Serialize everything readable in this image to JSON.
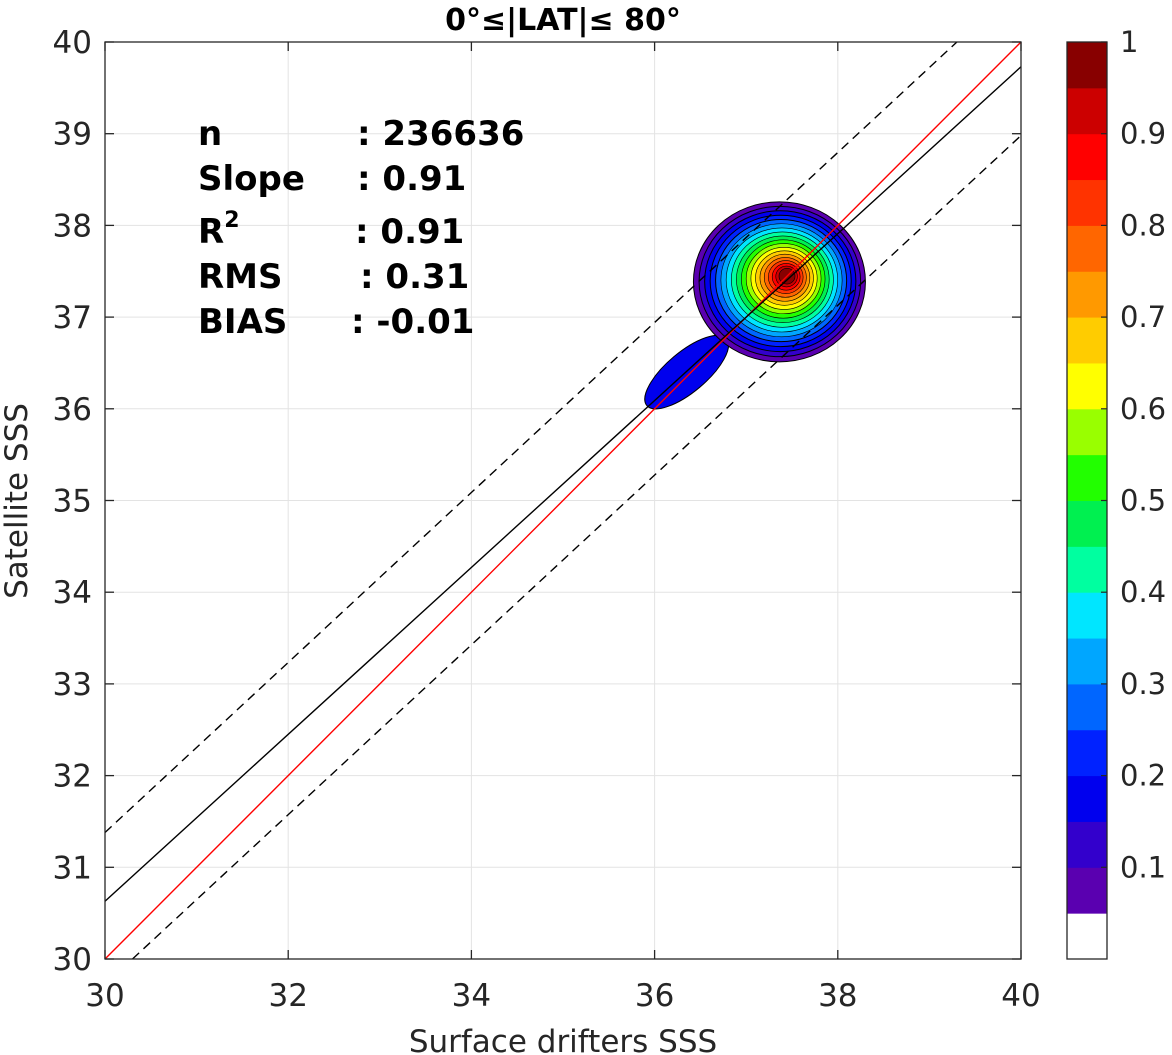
{
  "chart_data": {
    "type": "contour",
    "title": "0°≤|LAT|≤ 80°",
    "xlabel": "Surface drifters SSS",
    "ylabel": "Satellite SSS",
    "xlim": [
      30,
      40
    ],
    "ylim": [
      30,
      40
    ],
    "x_ticks": [
      "30",
      "32",
      "34",
      "36",
      "38",
      "40"
    ],
    "y_ticks": [
      "30",
      "31",
      "32",
      "33",
      "34",
      "35",
      "36",
      "37",
      "38",
      "39",
      "40"
    ],
    "grid": true,
    "stats": [
      {
        "label": "n",
        "value": ": 236636"
      },
      {
        "label": "Slope",
        "value": ": 0.91"
      },
      {
        "label": "R",
        "sup": "2",
        "value": ": 0.91"
      },
      {
        "label": "RMS",
        "value": ": 0.31"
      },
      {
        "label": "BIAS",
        "value": ": -0.01"
      }
    ],
    "lines": [
      {
        "name": "identity",
        "style": "solid",
        "color": "#ff0000",
        "x": [
          30,
          40
        ],
        "y": [
          30,
          40
        ]
      },
      {
        "name": "fit",
        "style": "solid",
        "color": "#000000",
        "x": [
          30,
          40
        ],
        "y": [
          30.63,
          39.73
        ]
      },
      {
        "name": "fit-plus",
        "style": "dashed",
        "color": "#000000",
        "x": [
          30,
          39.3
        ],
        "y": [
          31.38,
          40
        ]
      },
      {
        "name": "fit-minus",
        "style": "dashed",
        "color": "#000000",
        "x": [
          30.3,
          40
        ],
        "y": [
          30,
          38.98
        ]
      }
    ],
    "density_peaks": [
      {
        "x": 37.45,
        "y": 37.45,
        "peak": 1.0
      },
      {
        "x": 36.35,
        "y": 36.4,
        "peak": 0.1
      }
    ],
    "colorbar": {
      "range": [
        0,
        1
      ],
      "ticks": [
        "0.1",
        "0.2",
        "0.3",
        "0.4",
        "0.5",
        "0.6",
        "0.7",
        "0.8",
        "0.9",
        "1"
      ],
      "colors": [
        "#ffffff",
        "#5a00b0",
        "#3300cc",
        "#0000ee",
        "#0022ff",
        "#0066ff",
        "#00a6ff",
        "#00e6ff",
        "#00ffa0",
        "#00f050",
        "#22ff00",
        "#99ff00",
        "#ffff00",
        "#ffcc00",
        "#ff9900",
        "#ff6600",
        "#ff3300",
        "#ff0000",
        "#cc0000",
        "#880000"
      ]
    }
  }
}
